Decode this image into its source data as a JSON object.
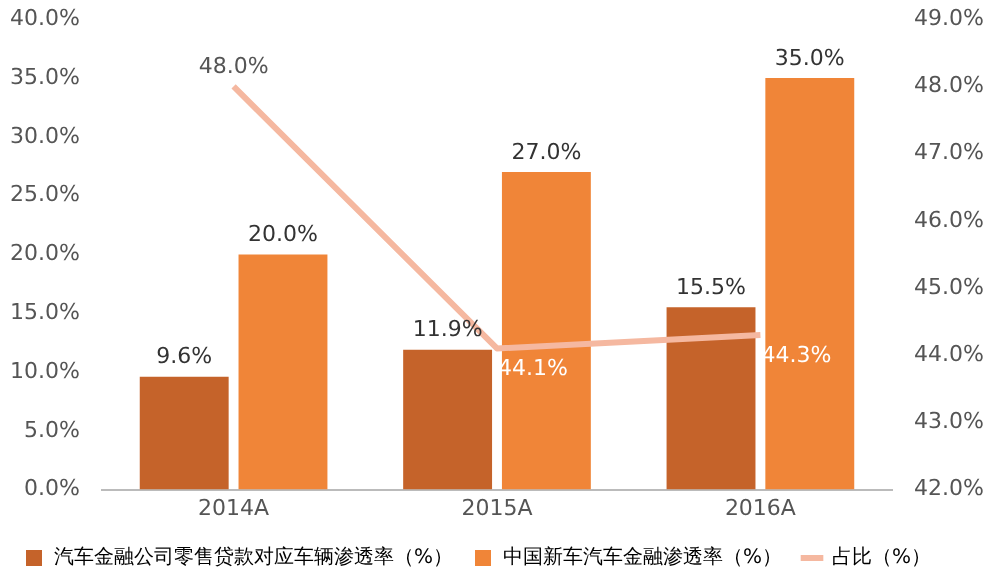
{
  "chart_data": {
    "type": "bar",
    "categories": [
      "2014A",
      "2015A",
      "2016A"
    ],
    "series": [
      {
        "name": "汽车金融公司零售贷款对应车辆渗透率（%）",
        "color": "#c5632a",
        "values": [
          9.6,
          11.9,
          15.5
        ],
        "value_labels": [
          "9.6%",
          "11.9%",
          "15.5%"
        ]
      },
      {
        "name": "中国新车汽车金融渗透率（%）",
        "color": "#f08538",
        "values": [
          20.0,
          27.0,
          35.0
        ],
        "value_labels": [
          "20.0%",
          "27.0%",
          "35.0%"
        ]
      },
      {
        "name": "占比（%）",
        "type": "line",
        "axis": "y2",
        "color": "#f5b8a0",
        "values": [
          48.0,
          44.1,
          44.3
        ],
        "value_labels": [
          "48.0%",
          "44.1%",
          "44.3%"
        ]
      }
    ],
    "ylim": [
      0,
      40
    ],
    "yticks": [
      {
        "value": 0,
        "label": "0.0%"
      },
      {
        "value": 5,
        "label": "5.0%"
      },
      {
        "value": 10,
        "label": "10.0%"
      },
      {
        "value": 15,
        "label": "15.0%"
      },
      {
        "value": 20,
        "label": "20.0%"
      },
      {
        "value": 25,
        "label": "25.0%"
      },
      {
        "value": 30,
        "label": "30.0%"
      },
      {
        "value": 35,
        "label": "35.0%"
      },
      {
        "value": 40,
        "label": "40.0%"
      }
    ],
    "y2lim": [
      42,
      49
    ],
    "y2ticks": [
      {
        "value": 42,
        "label": "42.0%"
      },
      {
        "value": 43,
        "label": "43.0%"
      },
      {
        "value": 44,
        "label": "44.0%"
      },
      {
        "value": 45,
        "label": "45.0%"
      },
      {
        "value": 46,
        "label": "46.0%"
      },
      {
        "value": 47,
        "label": "47.0%"
      },
      {
        "value": 48,
        "label": "48.0%"
      },
      {
        "value": 49,
        "label": "49.0%"
      }
    ],
    "grid": false,
    "legend": "bottom",
    "marker": "none"
  }
}
